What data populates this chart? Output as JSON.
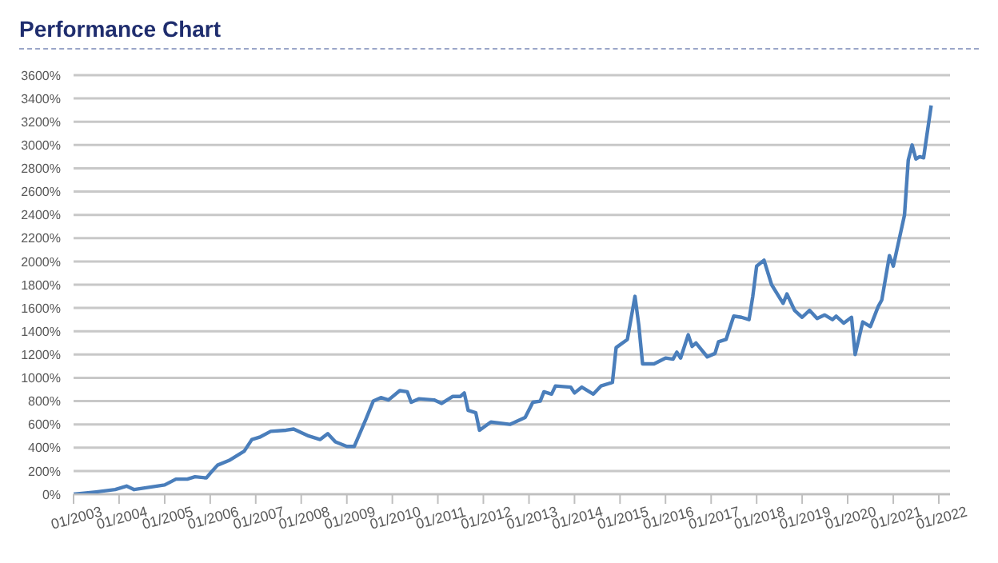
{
  "chart_data": {
    "type": "line",
    "title": "Performance Chart",
    "xlim": [
      "2003-01",
      "2022-04"
    ],
    "xticks": [
      {
        "value": "2003-01",
        "label": "01/2003"
      },
      {
        "value": "2004-01",
        "label": "01/2004"
      },
      {
        "value": "2005-01",
        "label": "01/2005"
      },
      {
        "value": "2006-01",
        "label": "01/2006"
      },
      {
        "value": "2007-01",
        "label": "01/2007"
      },
      {
        "value": "2008-01",
        "label": "01/2008"
      },
      {
        "value": "2009-01",
        "label": "01/2009"
      },
      {
        "value": "2010-01",
        "label": "01/2010"
      },
      {
        "value": "2011-01",
        "label": "01/2011"
      },
      {
        "value": "2012-01",
        "label": "01/2012"
      },
      {
        "value": "2013-01",
        "label": "01/2013"
      },
      {
        "value": "2014-01",
        "label": "01/2014"
      },
      {
        "value": "2015-01",
        "label": "01/2015"
      },
      {
        "value": "2016-01",
        "label": "01/2016"
      },
      {
        "value": "2017-01",
        "label": "01/2017"
      },
      {
        "value": "2018-01",
        "label": "01/2018"
      },
      {
        "value": "2019-01",
        "label": "01/2019"
      },
      {
        "value": "2020-01",
        "label": "01/2020"
      },
      {
        "value": "2021-01",
        "label": "01/2021"
      },
      {
        "value": "2022-01",
        "label": "01/2022"
      }
    ],
    "ylim": [
      0,
      3600
    ],
    "yticks": [
      {
        "value": 0,
        "label": "0%"
      },
      {
        "value": 200,
        "label": "200%"
      },
      {
        "value": 400,
        "label": "400%"
      },
      {
        "value": 600,
        "label": "600%"
      },
      {
        "value": 800,
        "label": "800%"
      },
      {
        "value": 1000,
        "label": "1000%"
      },
      {
        "value": 1200,
        "label": "1200%"
      },
      {
        "value": 1400,
        "label": "1400%"
      },
      {
        "value": 1600,
        "label": "1600%"
      },
      {
        "value": 1800,
        "label": "1800%"
      },
      {
        "value": 2000,
        "label": "2000%"
      },
      {
        "value": 2200,
        "label": "2200%"
      },
      {
        "value": 2400,
        "label": "2400%"
      },
      {
        "value": 2600,
        "label": "2600%"
      },
      {
        "value": 2800,
        "label": "2800%"
      },
      {
        "value": 3000,
        "label": "3000%"
      },
      {
        "value": 3200,
        "label": "3200%"
      },
      {
        "value": 3400,
        "label": "3400%"
      },
      {
        "value": 3600,
        "label": "3600%"
      }
    ],
    "grid": "y",
    "marker": "none",
    "line_style": "solid",
    "x": [
      "2003-01",
      "2003-07",
      "2003-12",
      "2004-03",
      "2004-05",
      "2005-01",
      "2005-04",
      "2005-07",
      "2005-09",
      "2005-12",
      "2006-01",
      "2006-03",
      "2006-06",
      "2006-10",
      "2006-12",
      "2007-02",
      "2007-05",
      "2007-09",
      "2007-11",
      "2008-03",
      "2008-06",
      "2008-08",
      "2008-10",
      "2009-01",
      "2009-03",
      "2009-06",
      "2009-08",
      "2009-10",
      "2009-12",
      "2010-03",
      "2010-05",
      "2010-06",
      "2010-08",
      "2010-12",
      "2011-02",
      "2011-05",
      "2011-07",
      "2011-08",
      "2011-09",
      "2011-11",
      "2011-12",
      "2012-03",
      "2012-08",
      "2012-12",
      "2013-02",
      "2013-04",
      "2013-05",
      "2013-07",
      "2013-08",
      "2013-12",
      "2014-01",
      "2014-03",
      "2014-06",
      "2014-08",
      "2014-11",
      "2014-12",
      "2015-03",
      "2015-05",
      "2015-06",
      "2015-07",
      "2015-10",
      "2016-01",
      "2016-03",
      "2016-04",
      "2016-05",
      "2016-07",
      "2016-08",
      "2016-09",
      "2016-12",
      "2017-02",
      "2017-03",
      "2017-05",
      "2017-07",
      "2017-09",
      "2017-11",
      "2017-12",
      "2018-01",
      "2018-03",
      "2018-05",
      "2018-08",
      "2018-09",
      "2018-11",
      "2019-01",
      "2019-03",
      "2019-05",
      "2019-07",
      "2019-09",
      "2019-10",
      "2019-12",
      "2020-02",
      "2020-03",
      "2020-05",
      "2020-07",
      "2020-09",
      "2020-10",
      "2020-12",
      "2021-01",
      "2021-04",
      "2021-05",
      "2021-06",
      "2021-07",
      "2021-08",
      "2021-09",
      "2021-11"
    ],
    "series": [
      {
        "color": "#4a7ebb",
        "values": [
          0,
          20,
          40,
          70,
          40,
          80,
          130,
          130,
          150,
          140,
          180,
          250,
          290,
          370,
          470,
          490,
          540,
          550,
          560,
          500,
          470,
          520,
          450,
          410,
          410,
          640,
          800,
          830,
          810,
          890,
          880,
          790,
          820,
          810,
          780,
          840,
          840,
          870,
          720,
          700,
          550,
          620,
          600,
          660,
          790,
          800,
          880,
          860,
          930,
          920,
          870,
          920,
          860,
          930,
          960,
          1260,
          1330,
          1700,
          1450,
          1120,
          1120,
          1170,
          1160,
          1220,
          1170,
          1370,
          1270,
          1300,
          1180,
          1210,
          1310,
          1330,
          1530,
          1520,
          1500,
          1700,
          1960,
          2010,
          1800,
          1640,
          1720,
          1580,
          1520,
          1580,
          1510,
          1540,
          1500,
          1530,
          1470,
          1520,
          1200,
          1480,
          1440,
          1610,
          1670,
          2050,
          1960,
          2400,
          2870,
          3000,
          2880,
          2900,
          2890,
          3340
        ]
      }
    ]
  }
}
